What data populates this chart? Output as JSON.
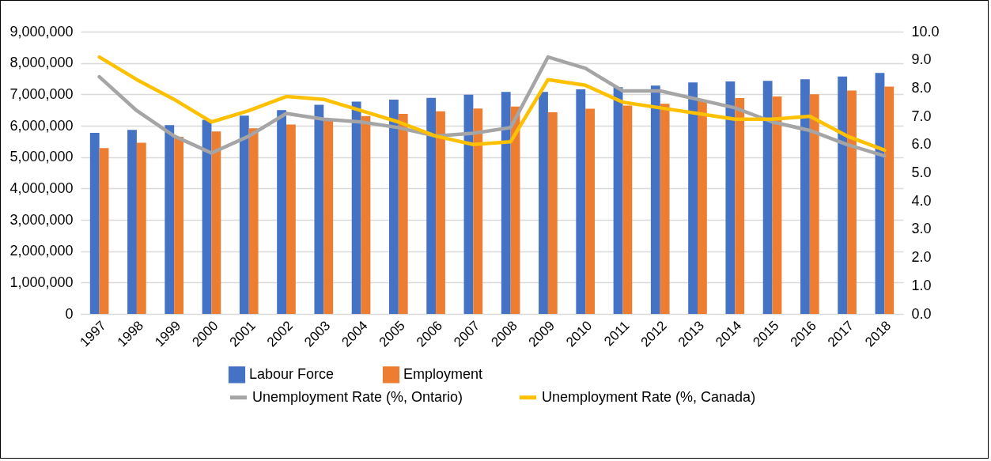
{
  "chart_data": {
    "type": "bar",
    "categories": [
      "1997",
      "1998",
      "1999",
      "2000",
      "2001",
      "2002",
      "2003",
      "2004",
      "2005",
      "2006",
      "2007",
      "2008",
      "2009",
      "2010",
      "2011",
      "2012",
      "2013",
      "2014",
      "2015",
      "2016",
      "2017",
      "2018"
    ],
    "series": [
      {
        "name": "Labour Force",
        "color": "#4472c4",
        "values": [
          5770000,
          5870000,
          6020000,
          6190000,
          6320000,
          6500000,
          6670000,
          6770000,
          6830000,
          6890000,
          6990000,
          7080000,
          7080000,
          7160000,
          7230000,
          7280000,
          7380000,
          7410000,
          7430000,
          7480000,
          7570000,
          7680000
        ]
      },
      {
        "name": "Employment",
        "color": "#ed7d31",
        "values": [
          5290000,
          5460000,
          5650000,
          5820000,
          5920000,
          6040000,
          6160000,
          6310000,
          6380000,
          6460000,
          6550000,
          6610000,
          6430000,
          6540000,
          6640000,
          6700000,
          6780000,
          6880000,
          6930000,
          7000000,
          7120000,
          7250000
        ]
      },
      {
        "name": "Unemployment Rate (%, Ontario)",
        "type": "line",
        "axis": "y2",
        "color": "#a5a5a5",
        "values": [
          8.4,
          7.2,
          6.3,
          5.7,
          6.3,
          7.1,
          6.9,
          6.8,
          6.6,
          6.3,
          6.4,
          6.6,
          9.1,
          8.7,
          7.9,
          7.9,
          7.6,
          7.3,
          6.8,
          6.5,
          6.0,
          5.6
        ]
      },
      {
        "name": "Unemployment Rate (%, Canada)",
        "type": "line",
        "axis": "y2",
        "color": "#ffc000",
        "values": [
          9.1,
          8.3,
          7.6,
          6.8,
          7.2,
          7.7,
          7.6,
          7.2,
          6.8,
          6.3,
          6.0,
          6.1,
          8.3,
          8.1,
          7.5,
          7.3,
          7.1,
          6.9,
          6.9,
          7.0,
          6.3,
          5.8
        ]
      }
    ],
    "ylim": [
      0,
      9000000
    ],
    "yticks": [
      0,
      {
        "value": 1000000,
        "label": "1,000,000"
      },
      {
        "value": 2000000,
        "label": "2,000,000"
      },
      {
        "value": 3000000,
        "label": "3,000,000"
      },
      {
        "value": 4000000,
        "label": "4,000,000"
      },
      {
        "value": 5000000,
        "label": "5,000,000"
      },
      {
        "value": 6000000,
        "label": "6,000,000"
      },
      {
        "value": 7000000,
        "label": "7,000,000"
      },
      {
        "value": 8000000,
        "label": "8,000,000"
      },
      {
        "value": 9000000,
        "label": "9,000,000"
      }
    ],
    "y2lim": [
      0,
      10
    ],
    "y2ticks": [
      {
        "value": 0,
        "label": "0.0"
      },
      {
        "value": 1,
        "label": "1.0"
      },
      {
        "value": 2,
        "label": "2.0"
      },
      {
        "value": 3,
        "label": "3.0"
      },
      {
        "value": 4,
        "label": "4.0"
      },
      {
        "value": 5,
        "label": "5.0"
      },
      {
        "value": 6,
        "label": "6.0"
      },
      {
        "value": 7,
        "label": "7.0"
      },
      {
        "value": 8,
        "label": "8.0"
      },
      {
        "value": 9,
        "label": "9.0"
      },
      {
        "value": 10,
        "label": "10.0"
      }
    ],
    "grid": "y",
    "legend": "bottom",
    "line_style": "solid"
  }
}
